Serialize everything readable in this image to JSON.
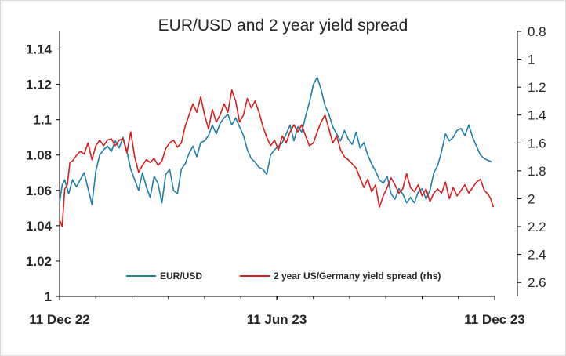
{
  "chart_data": {
    "type": "line",
    "title": "EUR/USD and 2 year yield spread",
    "x_tick_labels": [
      "11 Dec 22",
      "11 Jun 23",
      "11 Dec 23"
    ],
    "x_range": [
      "11 Dec 22",
      "11 Dec 23"
    ],
    "y_left": {
      "ylim": [
        1.0,
        1.15
      ],
      "ticks": [
        "1",
        "1.02",
        "1.04",
        "1.06",
        "1.08",
        "1.1",
        "1.12",
        "1.14"
      ]
    },
    "y_right": {
      "ylim": [
        2.7,
        0.8
      ],
      "inverted": true,
      "ticks": [
        "0.8",
        "1",
        "1.2",
        "1.4",
        "1.6",
        "1.8",
        "2",
        "2.2",
        "2.4",
        "2.6"
      ]
    },
    "grid": false,
    "legend_position": "bottom-center",
    "series": [
      {
        "name": "EUR/USD",
        "axis": "left",
        "color": "#1f7fa8",
        "points": [
          [
            0,
            1.053
          ],
          [
            2,
            1.063
          ],
          [
            4,
            1.066
          ],
          [
            7,
            1.058
          ],
          [
            10,
            1.066
          ],
          [
            13,
            1.062
          ],
          [
            16,
            1.066
          ],
          [
            19,
            1.07
          ],
          [
            22,
            1.061
          ],
          [
            25,
            1.052
          ],
          [
            28,
            1.071
          ],
          [
            31,
            1.08
          ],
          [
            34,
            1.083
          ],
          [
            37,
            1.085
          ],
          [
            40,
            1.082
          ],
          [
            43,
            1.088
          ],
          [
            46,
            1.084
          ],
          [
            49,
            1.09
          ],
          [
            52,
            1.082
          ],
          [
            55,
            1.072
          ],
          [
            58,
            1.066
          ],
          [
            61,
            1.06
          ],
          [
            64,
            1.07
          ],
          [
            67,
            1.062
          ],
          [
            70,
            1.056
          ],
          [
            73,
            1.068
          ],
          [
            76,
            1.064
          ],
          [
            79,
            1.053
          ],
          [
            82,
            1.069
          ],
          [
            85,
            1.072
          ],
          [
            88,
            1.06
          ],
          [
            91,
            1.058
          ],
          [
            94,
            1.072
          ],
          [
            97,
            1.075
          ],
          [
            100,
            1.081
          ],
          [
            103,
            1.085
          ],
          [
            106,
            1.079
          ],
          [
            109,
            1.087
          ],
          [
            112,
            1.088
          ],
          [
            115,
            1.091
          ],
          [
            118,
            1.097
          ],
          [
            121,
            1.092
          ],
          [
            124,
            1.098
          ],
          [
            127,
            1.101
          ],
          [
            130,
            1.103
          ],
          [
            133,
            1.097
          ],
          [
            136,
            1.101
          ],
          [
            139,
            1.096
          ],
          [
            142,
            1.091
          ],
          [
            145,
            1.083
          ],
          [
            148,
            1.078
          ],
          [
            151,
            1.076
          ],
          [
            154,
            1.073
          ],
          [
            157,
            1.072
          ],
          [
            160,
            1.069
          ],
          [
            163,
            1.08
          ],
          [
            166,
            1.083
          ],
          [
            169,
            1.085
          ],
          [
            172,
            1.087
          ],
          [
            175,
            1.092
          ],
          [
            178,
            1.097
          ],
          [
            181,
            1.088
          ],
          [
            184,
            1.096
          ],
          [
            187,
            1.093
          ],
          [
            190,
            1.102
          ],
          [
            193,
            1.11
          ],
          [
            196,
            1.12
          ],
          [
            199,
            1.124
          ],
          [
            202,
            1.117
          ],
          [
            205,
            1.108
          ],
          [
            208,
            1.103
          ],
          [
            211,
            1.096
          ],
          [
            214,
            1.092
          ],
          [
            217,
            1.088
          ],
          [
            220,
            1.094
          ],
          [
            223,
            1.089
          ],
          [
            226,
            1.086
          ],
          [
            229,
            1.093
          ],
          [
            232,
            1.084
          ],
          [
            235,
            1.087
          ],
          [
            238,
            1.08
          ],
          [
            241,
            1.075
          ],
          [
            244,
            1.071
          ],
          [
            247,
            1.066
          ],
          [
            250,
            1.064
          ],
          [
            253,
            1.068
          ],
          [
            256,
            1.058
          ],
          [
            259,
            1.055
          ],
          [
            262,
            1.061
          ],
          [
            265,
            1.058
          ],
          [
            268,
            1.053
          ],
          [
            271,
            1.056
          ],
          [
            274,
            1.053
          ],
          [
            277,
            1.059
          ],
          [
            280,
            1.061
          ],
          [
            283,
            1.055
          ],
          [
            286,
            1.06
          ],
          [
            289,
            1.07
          ],
          [
            292,
            1.074
          ],
          [
            295,
            1.082
          ],
          [
            298,
            1.092
          ],
          [
            301,
            1.088
          ],
          [
            304,
            1.09
          ],
          [
            307,
            1.094
          ],
          [
            310,
            1.095
          ],
          [
            313,
            1.091
          ],
          [
            316,
            1.097
          ],
          [
            319,
            1.09
          ],
          [
            322,
            1.085
          ],
          [
            325,
            1.08
          ],
          [
            328,
            1.078
          ],
          [
            331,
            1.077
          ],
          [
            334,
            1.076
          ]
        ]
      },
      {
        "name": "2 year US/Germany yield spread (rhs)",
        "axis": "right",
        "color": "#d71f1f",
        "points": [
          [
            0,
            2.15
          ],
          [
            2,
            2.2
          ],
          [
            4,
            1.93
          ],
          [
            6,
            1.9
          ],
          [
            8,
            1.74
          ],
          [
            10,
            1.73
          ],
          [
            13,
            1.69
          ],
          [
            16,
            1.66
          ],
          [
            19,
            1.68
          ],
          [
            22,
            1.6
          ],
          [
            25,
            1.72
          ],
          [
            28,
            1.62
          ],
          [
            31,
            1.58
          ],
          [
            34,
            1.62
          ],
          [
            37,
            1.58
          ],
          [
            40,
            1.57
          ],
          [
            43,
            1.62
          ],
          [
            46,
            1.58
          ],
          [
            49,
            1.57
          ],
          [
            52,
            1.67
          ],
          [
            55,
            1.52
          ],
          [
            58,
            1.7
          ],
          [
            61,
            1.81
          ],
          [
            64,
            1.76
          ],
          [
            67,
            1.72
          ],
          [
            70,
            1.74
          ],
          [
            73,
            1.71
          ],
          [
            76,
            1.76
          ],
          [
            79,
            1.73
          ],
          [
            82,
            1.64
          ],
          [
            85,
            1.6
          ],
          [
            88,
            1.58
          ],
          [
            91,
            1.63
          ],
          [
            94,
            1.6
          ],
          [
            97,
            1.48
          ],
          [
            100,
            1.4
          ],
          [
            103,
            1.32
          ],
          [
            106,
            1.38
          ],
          [
            109,
            1.27
          ],
          [
            112,
            1.4
          ],
          [
            115,
            1.5
          ],
          [
            118,
            1.36
          ],
          [
            121,
            1.45
          ],
          [
            124,
            1.4
          ],
          [
            127,
            1.32
          ],
          [
            130,
            1.38
          ],
          [
            133,
            1.22
          ],
          [
            136,
            1.3
          ],
          [
            139,
            1.45
          ],
          [
            142,
            1.4
          ],
          [
            145,
            1.28
          ],
          [
            148,
            1.35
          ],
          [
            151,
            1.3
          ],
          [
            154,
            1.38
          ],
          [
            157,
            1.48
          ],
          [
            160,
            1.56
          ],
          [
            163,
            1.62
          ],
          [
            166,
            1.58
          ],
          [
            169,
            1.65
          ],
          [
            172,
            1.55
          ],
          [
            175,
            1.6
          ],
          [
            178,
            1.52
          ],
          [
            181,
            1.47
          ],
          [
            184,
            1.52
          ],
          [
            187,
            1.47
          ],
          [
            190,
            1.55
          ],
          [
            193,
            1.62
          ],
          [
            196,
            1.6
          ],
          [
            199,
            1.52
          ],
          [
            202,
            1.45
          ],
          [
            205,
            1.4
          ],
          [
            208,
            1.5
          ],
          [
            211,
            1.6
          ],
          [
            214,
            1.55
          ],
          [
            217,
            1.65
          ],
          [
            220,
            1.7
          ],
          [
            223,
            1.72
          ],
          [
            226,
            1.75
          ],
          [
            229,
            1.78
          ],
          [
            232,
            1.85
          ],
          [
            235,
            1.92
          ],
          [
            238,
            1.86
          ],
          [
            241,
            1.95
          ],
          [
            244,
            1.9
          ],
          [
            247,
            2.06
          ],
          [
            250,
            1.98
          ],
          [
            253,
            1.92
          ],
          [
            256,
            1.85
          ],
          [
            259,
            1.9
          ],
          [
            262,
            1.96
          ],
          [
            265,
            1.93
          ],
          [
            268,
            1.82
          ],
          [
            271,
            1.92
          ],
          [
            274,
            1.95
          ],
          [
            277,
            1.9
          ],
          [
            280,
            1.98
          ],
          [
            283,
            1.93
          ],
          [
            286,
            2.02
          ],
          [
            289,
            1.96
          ],
          [
            292,
            1.93
          ],
          [
            295,
            1.96
          ],
          [
            298,
            1.88
          ],
          [
            301,
            2.0
          ],
          [
            304,
            1.92
          ],
          [
            307,
            1.98
          ],
          [
            310,
            1.94
          ],
          [
            313,
            1.9
          ],
          [
            316,
            1.96
          ],
          [
            319,
            1.92
          ],
          [
            322,
            1.88
          ],
          [
            325,
            1.86
          ],
          [
            328,
            1.94
          ],
          [
            331,
            1.97
          ],
          [
            333,
            2.0
          ],
          [
            335,
            2.06
          ]
        ]
      }
    ]
  }
}
